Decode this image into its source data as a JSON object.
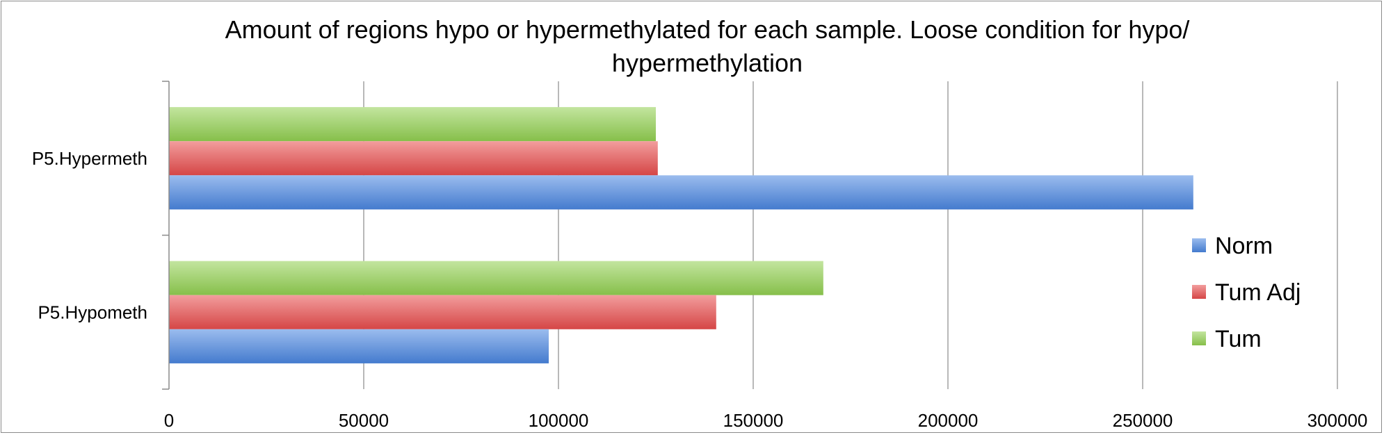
{
  "chart_data": {
    "type": "bar",
    "orientation": "horizontal",
    "title_lines": [
      "Amount of regions hypo or hypermethylated for each sample. Loose condition for hypo/",
      "hypermethylation"
    ],
    "categories": [
      "P5.Hypermeth",
      "P5.Hypometh"
    ],
    "series": [
      {
        "name": "Tum",
        "color": "#92d050",
        "values": [
          125000,
          168000
        ]
      },
      {
        "name": "Tum Adj",
        "color": "#e84c4c",
        "values": [
          125500,
          140500
        ]
      },
      {
        "name": "Norm",
        "color": "#4a86e0",
        "values": [
          263000,
          97500
        ]
      }
    ],
    "xlim": [
      0,
      300000
    ],
    "xticks": [
      0,
      50000,
      100000,
      150000,
      200000,
      250000,
      300000
    ],
    "xtick_labels": [
      "0",
      "50000",
      "100000",
      "150000",
      "200000",
      "250000",
      "300000"
    ],
    "grid": true,
    "legend_position": "right"
  }
}
